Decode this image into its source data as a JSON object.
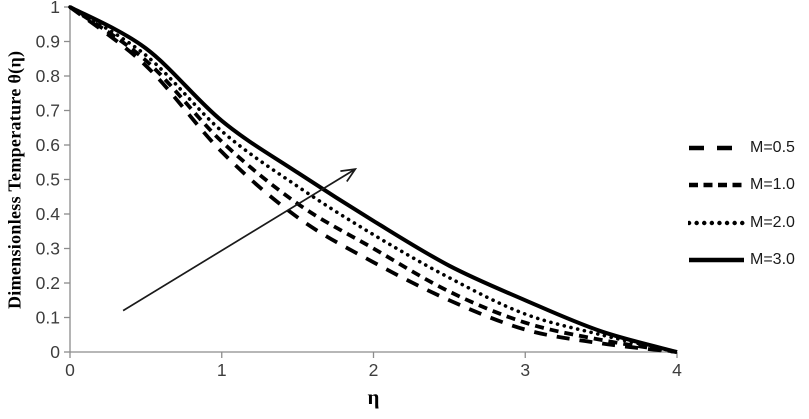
{
  "chart_data": {
    "type": "line",
    "title": "",
    "xlabel": "η",
    "ylabel": "Dimensionless Temperature θ(η)",
    "xlim": [
      0,
      4
    ],
    "ylim": [
      0,
      1
    ],
    "grid": false,
    "legend_position": "right",
    "x_ticks": {
      "values": [
        0,
        1,
        2,
        3,
        4
      ],
      "labels": [
        "0",
        "1",
        "2",
        "3",
        "4"
      ]
    },
    "y_ticks": {
      "values": [
        0,
        0.1,
        0.2,
        0.3,
        0.4,
        0.5,
        0.6,
        0.7,
        0.8,
        0.9,
        1
      ],
      "labels": [
        "0",
        "0.1",
        "0.2",
        "0.3",
        "0.4",
        "0.5",
        "0.6",
        "0.7",
        "0.8",
        "0.9",
        "1"
      ]
    },
    "x": [
      0,
      0.5,
      1,
      1.5,
      2,
      2.5,
      3,
      3.5,
      4
    ],
    "series": [
      {
        "name": "M=0.5",
        "style": "long-dash",
        "color": "#000000",
        "values": [
          1,
          0.83,
          0.58,
          0.39,
          0.26,
          0.15,
          0.065,
          0.025,
          0
        ]
      },
      {
        "name": "M=1.0",
        "style": "dash",
        "color": "#000000",
        "values": [
          1,
          0.845,
          0.61,
          0.43,
          0.3,
          0.175,
          0.085,
          0.035,
          0
        ]
      },
      {
        "name": "M=2.0",
        "style": "dotted",
        "color": "#000000",
        "values": [
          1,
          0.86,
          0.64,
          0.48,
          0.34,
          0.215,
          0.11,
          0.05,
          0
        ]
      },
      {
        "name": "M=3.0",
        "style": "solid",
        "color": "#000000",
        "values": [
          1,
          0.88,
          0.67,
          0.52,
          0.38,
          0.25,
          0.15,
          0.06,
          0
        ]
      }
    ],
    "annotations": [
      {
        "type": "arrow",
        "from": [
          0.35,
          0.12
        ],
        "to": [
          1.88,
          0.53
        ],
        "meaning": "increasing M"
      }
    ],
    "colors": {
      "axis": "#8c8c8c",
      "tick_label": "#3d3d3d",
      "line": "#000000"
    }
  }
}
